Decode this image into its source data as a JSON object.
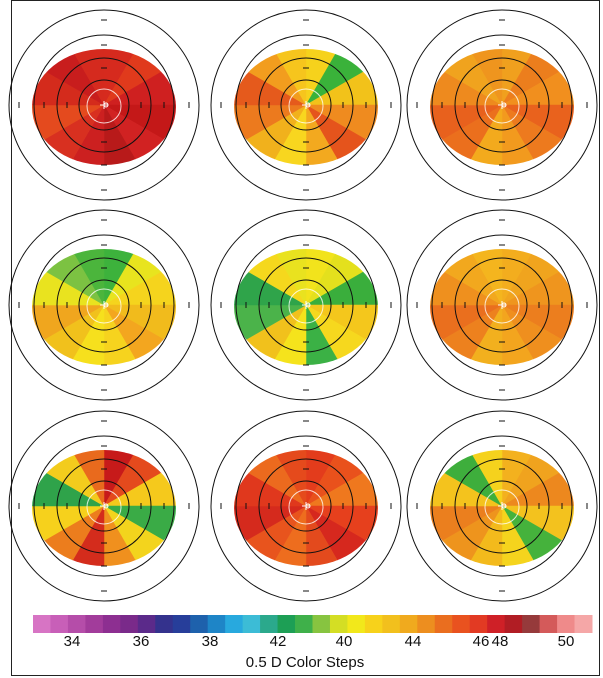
{
  "maps": [
    {
      "id": "map-1",
      "sectors": [
        "#d62a1e",
        "#e03a1c",
        "#cf2020",
        "#c41818",
        "#d12222",
        "#b81a1a",
        "#cc2020",
        "#d83020",
        "#e44a1e",
        "#d42b1c",
        "#c81d1d",
        "#d52a1e"
      ]
    },
    {
      "id": "map-2",
      "sectors": [
        "#f6d21c",
        "#3ab23a",
        "#f2c21a",
        "#ef8b1f",
        "#e5541c",
        "#f3a91f",
        "#f8d61f",
        "#f1b11c",
        "#ec7a1e",
        "#e55a1c",
        "#f29d1e",
        "#f6c51d"
      ]
    },
    {
      "id": "map-3",
      "sectors": [
        "#f0a01e",
        "#ec7e1d",
        "#f18f1e",
        "#e9621d",
        "#ed7a1e",
        "#f29a1e",
        "#f3aa1d",
        "#eb6f1d",
        "#e8611d",
        "#ee8a1e",
        "#f0a31e",
        "#ef951e"
      ]
    },
    {
      "id": "map-4",
      "sectors": [
        "#3db23c",
        "#e8e41e",
        "#f5d41d",
        "#f1bb1c",
        "#f3a61f",
        "#f6d31e",
        "#f6e01d",
        "#f1c11c",
        "#f0a61e",
        "#e9e31f",
        "#7cc242",
        "#4bb53c"
      ]
    },
    {
      "id": "map-5",
      "sectors": [
        "#f2e31c",
        "#e4e01d",
        "#3aae3c",
        "#f4c71c",
        "#f6d81e",
        "#3bb145",
        "#f5e31c",
        "#f1c11c",
        "#4bb34a",
        "#2fa44a",
        "#f5d81d",
        "#e9e21f"
      ]
    },
    {
      "id": "map-6",
      "sectors": [
        "#f3ad1e",
        "#f0a41e",
        "#ef951e",
        "#ec7e1e",
        "#ef8f1e",
        "#f3a51e",
        "#f2b01e",
        "#ed811e",
        "#ea6f1e",
        "#ef901e",
        "#f2a81e",
        "#f4b51e"
      ]
    },
    {
      "id": "map-7",
      "sectors": [
        "#c71a1a",
        "#e44a1d",
        "#f5c91c",
        "#3aab46",
        "#f3d41d",
        "#f0901e",
        "#d42c1c",
        "#ec7d1d",
        "#f6d11c",
        "#2fa34a",
        "#f3cc1d",
        "#e96a1d"
      ]
    },
    {
      "id": "map-8",
      "sectors": [
        "#e33c1c",
        "#e9511c",
        "#ef781e",
        "#e6401d",
        "#d6281e",
        "#e34a1d",
        "#ee6d1e",
        "#e8541d",
        "#d52a1d",
        "#e0381d",
        "#ec6a1e",
        "#e54a1c"
      ]
    },
    {
      "id": "map-9",
      "sectors": [
        "#f3b11e",
        "#f0a31e",
        "#ed881e",
        "#f3c21e",
        "#45b23c",
        "#f5d41d",
        "#f3ba1c",
        "#ee941d",
        "#eb7f1e",
        "#f4c31d",
        "#3eae3c",
        "#f5d21d"
      ]
    }
  ],
  "color_scale": {
    "colors": [
      "#d774c4",
      "#c85fb8",
      "#b54da9",
      "#a23c9b",
      "#8d2f91",
      "#7a2a8a",
      "#5b2a8a",
      "#34328d",
      "#273e9a",
      "#1e61ac",
      "#1e85c7",
      "#28a9de",
      "#3cbcd6",
      "#2ba98c",
      "#1d9f55",
      "#3fb04a",
      "#87c440",
      "#d4de24",
      "#f2e81b",
      "#f7d21b",
      "#f2c01d",
      "#f0aa1e",
      "#ed8e1f",
      "#ea6e1f",
      "#e9521f",
      "#e23a23",
      "#cf2027",
      "#b11d24",
      "#963a3b",
      "#d45a5a",
      "#ef8a8a",
      "#f5a7a7"
    ],
    "tick_labels": [
      "34",
      "36",
      "38",
      "42",
      "40",
      "44",
      "46",
      "48",
      "50"
    ],
    "caption": "0.5 D Color Steps"
  }
}
